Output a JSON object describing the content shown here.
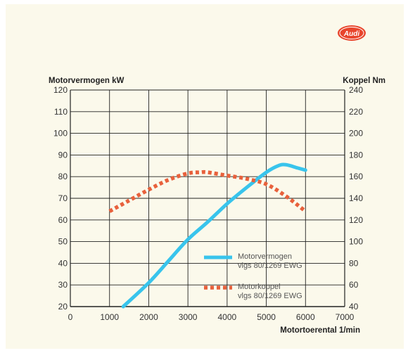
{
  "logo": {
    "text": "Audi",
    "color": "#e8452c"
  },
  "chart_data": {
    "type": "line",
    "left_axis_title": "Motorvermogen kW",
    "right_axis_title": "Koppel Nm",
    "xlabel": "Motortoerental 1/min",
    "xlim": [
      0,
      7000
    ],
    "ylim_left": [
      20,
      120
    ],
    "ylim_right": [
      40,
      240
    ],
    "x_ticks": [
      0,
      1000,
      2000,
      3000,
      4000,
      5000,
      6000,
      7000
    ],
    "y_ticks_left": [
      20,
      30,
      40,
      50,
      60,
      70,
      80,
      90,
      100,
      110,
      120
    ],
    "y_ticks_right": [
      40,
      60,
      80,
      100,
      120,
      140,
      160,
      180,
      200,
      220,
      240
    ],
    "grid": true,
    "legend_position": "lower-right",
    "series": [
      {
        "name": "Motorvermogen",
        "name_line2": "vlgs 80/1269 EWG",
        "axis": "left",
        "style": "solid",
        "color": "#38c4ec",
        "x": [
          1350,
          2000,
          2500,
          3000,
          3500,
          4000,
          4500,
          5000,
          5300,
          5500,
          5800,
          6000
        ],
        "y": [
          20,
          31,
          41,
          51,
          59,
          67.5,
          75,
          82,
          85,
          85.5,
          84,
          83
        ]
      },
      {
        "name": "Motorkoppel",
        "name_line2": "vlgs 80/1269 EWG",
        "axis": "right",
        "style": "dotted",
        "color": "#e8613c",
        "x": [
          1000,
          1500,
          2000,
          2500,
          3000,
          3300,
          3500,
          4000,
          4500,
          5000,
          5500,
          6000
        ],
        "y": [
          128,
          138,
          148,
          157,
          163,
          164,
          164,
          161,
          158,
          153,
          142,
          128
        ]
      }
    ]
  }
}
